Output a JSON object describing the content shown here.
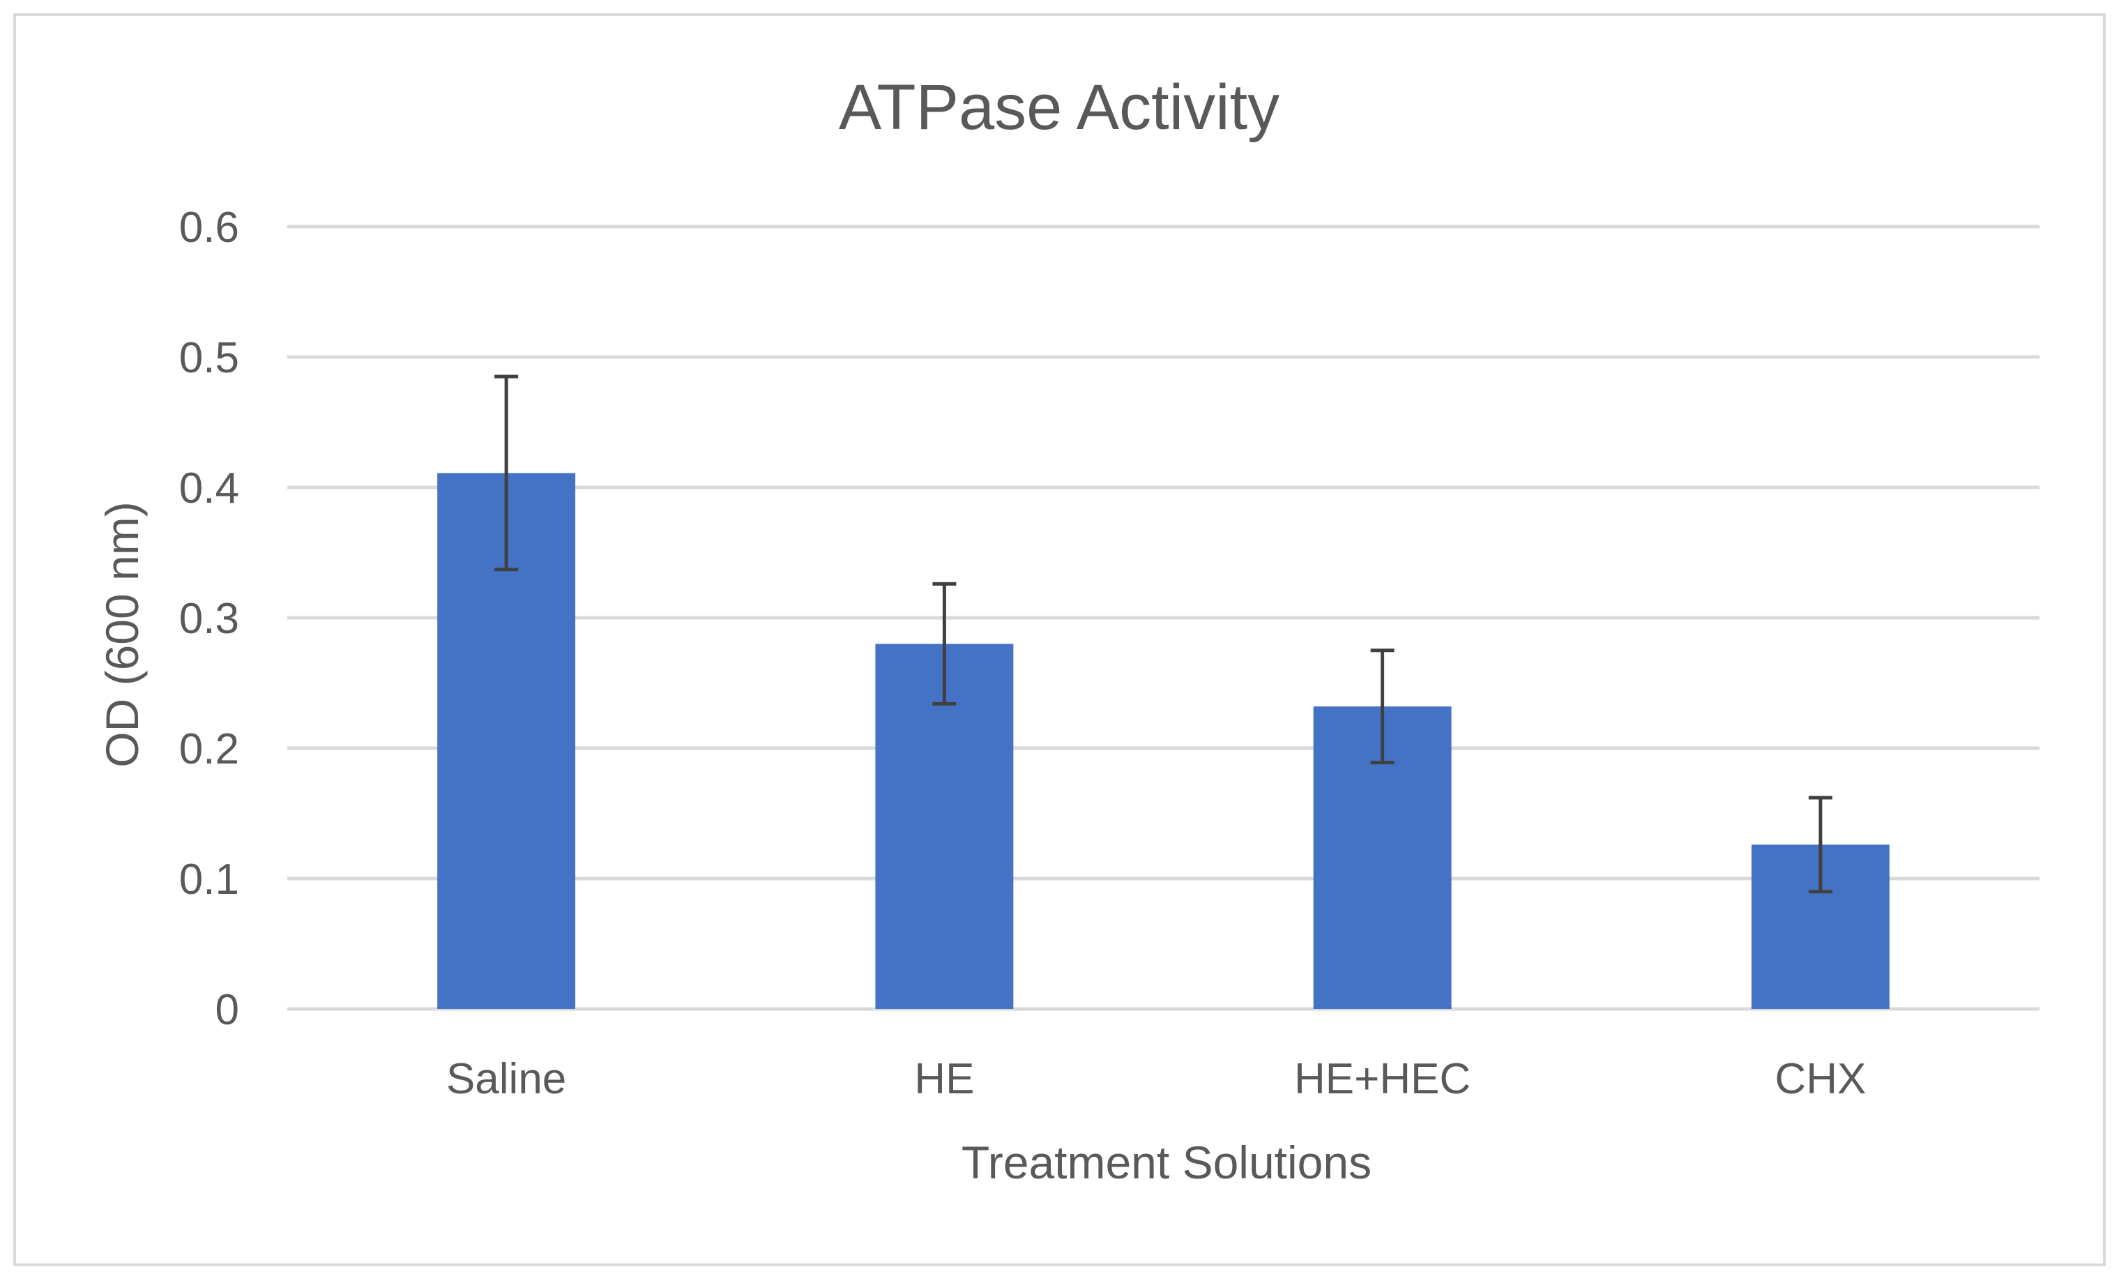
{
  "chart_data": {
    "type": "bar",
    "title": "ATPase Activity",
    "xlabel": "Treatment Solutions",
    "ylabel": "OD (600 nm)",
    "categories": [
      "Saline",
      "HE",
      "HE+HEC",
      "CHX"
    ],
    "values": [
      0.411,
      0.28,
      0.232,
      0.126
    ],
    "error_bars": {
      "upper": [
        0.485,
        0.326,
        0.275,
        0.162
      ],
      "lower": [
        0.337,
        0.234,
        0.189,
        0.09
      ]
    },
    "ylim": [
      0,
      0.6
    ],
    "yticks": [
      0,
      0.1,
      0.2,
      0.3,
      0.4,
      0.5,
      0.6
    ],
    "ytick_labels": [
      "0",
      "0.1",
      "0.2",
      "0.3",
      "0.4",
      "0.5",
      "0.6"
    ],
    "grid": "horizontal",
    "legend": "none",
    "colors": {
      "bar": "#4472C4",
      "error_bar": "#404040",
      "gridline": "#D9D9D9",
      "text": "#595959",
      "frame": "#D9D9D9"
    }
  }
}
